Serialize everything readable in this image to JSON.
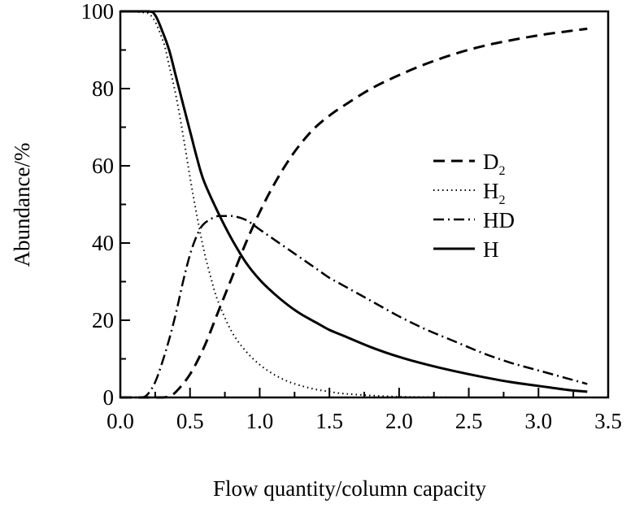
{
  "chart_data": {
    "type": "line",
    "title": "",
    "xlabel": "Flow quantity/column capacity",
    "ylabel": "Abundance/%",
    "xlim": [
      0.0,
      3.5
    ],
    "ylim": [
      0,
      100
    ],
    "xticks": [
      "0.0",
      "0.5",
      "1.0",
      "1.5",
      "2.0",
      "2.5",
      "3.0",
      "3.5"
    ],
    "yticks": [
      "0",
      "20",
      "40",
      "60",
      "80",
      "100"
    ],
    "grid": false,
    "legend_position": "right-center",
    "series": [
      {
        "name": "D2",
        "name_main": "D",
        "name_sub": "2",
        "style": "dashed",
        "x": [
          0.0,
          0.2,
          0.3,
          0.35,
          0.4,
          0.5,
          0.6,
          0.7,
          0.8,
          0.9,
          1.0,
          1.1,
          1.2,
          1.3,
          1.4,
          1.5,
          1.6,
          1.8,
          2.0,
          2.2,
          2.4,
          2.6,
          2.8,
          3.0,
          3.2,
          3.35
        ],
        "y": [
          0,
          0,
          0,
          0.3,
          1.5,
          6,
          13,
          22,
          31,
          40,
          48,
          55,
          61,
          66,
          70,
          73,
          75.5,
          80,
          83.5,
          86.5,
          89,
          91,
          92.5,
          93.8,
          94.8,
          95.5
        ]
      },
      {
        "name": "H2",
        "name_main": "H",
        "name_sub": "2",
        "style": "dotted",
        "x": [
          0.0,
          0.2,
          0.3,
          0.35,
          0.4,
          0.45,
          0.5,
          0.55,
          0.6,
          0.65,
          0.7,
          0.8,
          0.9,
          1.0,
          1.1,
          1.2,
          1.3,
          1.4,
          1.5,
          1.6,
          1.8,
          2.0,
          2.2,
          2.5,
          3.0,
          3.35
        ],
        "y": [
          100,
          99.5,
          93,
          86,
          78,
          68,
          57,
          47,
          38,
          31,
          25,
          17,
          12,
          8.5,
          6,
          4.2,
          3,
          2.1,
          1.5,
          1,
          0.5,
          0.2,
          0.1,
          0,
          0,
          0
        ]
      },
      {
        "name": "HD",
        "name_main": "HD",
        "name_sub": "",
        "style": "dash-dot",
        "x": [
          0.0,
          0.15,
          0.2,
          0.25,
          0.3,
          0.35,
          0.4,
          0.45,
          0.5,
          0.55,
          0.6,
          0.7,
          0.8,
          0.9,
          1.0,
          1.1,
          1.2,
          1.3,
          1.4,
          1.5,
          1.6,
          1.8,
          2.0,
          2.2,
          2.4,
          2.6,
          2.8,
          3.0,
          3.2,
          3.35
        ],
        "y": [
          0,
          0,
          1,
          4,
          9,
          15,
          22,
          30,
          37,
          42,
          45,
          47,
          47,
          46,
          43.5,
          41,
          38.5,
          36,
          33.5,
          31,
          29,
          25,
          21,
          17.5,
          14.5,
          11.5,
          9,
          7,
          5,
          3.5
        ]
      },
      {
        "name": "H",
        "name_main": "H",
        "name_sub": "",
        "style": "solid",
        "x": [
          0.0,
          0.2,
          0.25,
          0.3,
          0.35,
          0.4,
          0.45,
          0.5,
          0.55,
          0.6,
          0.7,
          0.8,
          0.9,
          1.0,
          1.1,
          1.2,
          1.3,
          1.4,
          1.5,
          1.6,
          1.8,
          2.0,
          2.2,
          2.4,
          2.6,
          2.8,
          3.0,
          3.2,
          3.35
        ],
        "y": [
          100,
          100,
          99,
          95,
          90,
          83,
          76,
          69,
          62,
          56,
          48,
          41,
          35,
          30.5,
          27,
          24,
          21.5,
          19.5,
          17.5,
          16,
          13,
          10.5,
          8.5,
          6.8,
          5.3,
          4,
          3,
          2,
          1.5
        ]
      }
    ]
  }
}
